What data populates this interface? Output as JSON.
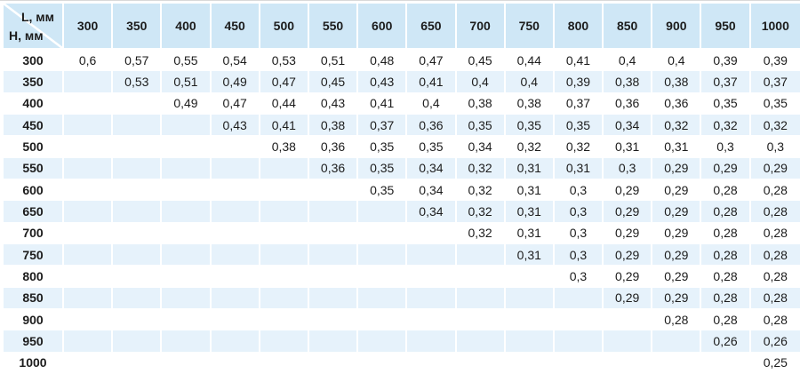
{
  "colors": {
    "header_bg": "#cfe7f6",
    "alt_row_bg": "#e6f2fb",
    "separator": "#ffffff",
    "text": "#1c1c1c",
    "top_border": "#d9d9d9"
  },
  "chart_data": {
    "type": "table",
    "col_axis_label": "L, мм",
    "row_axis_label": "H, мм",
    "columns": [
      "300",
      "350",
      "400",
      "450",
      "500",
      "550",
      "600",
      "650",
      "700",
      "750",
      "800",
      "850",
      "900",
      "950",
      "1000"
    ],
    "row_headers": [
      "300",
      "350",
      "400",
      "450",
      "500",
      "550",
      "600",
      "650",
      "700",
      "750",
      "800",
      "850",
      "900",
      "950",
      "1000"
    ],
    "cells": [
      [
        "0,6",
        "0,57",
        "0,55",
        "0,54",
        "0,53",
        "0,51",
        "0,48",
        "0,47",
        "0,45",
        "0,44",
        "0,41",
        "0,4",
        "0,4",
        "0,39",
        "0,39"
      ],
      [
        "",
        "0,53",
        "0,51",
        "0,49",
        "0,47",
        "0,45",
        "0,43",
        "0,41",
        "0,4",
        "0,4",
        "0,39",
        "0,38",
        "0,38",
        "0,37",
        "0,37"
      ],
      [
        "",
        "",
        "0,49",
        "0,47",
        "0,44",
        "0,43",
        "0,41",
        "0,4",
        "0,38",
        "0,38",
        "0,37",
        "0,36",
        "0,36",
        "0,35",
        "0,35"
      ],
      [
        "",
        "",
        "",
        "0,43",
        "0,41",
        "0,38",
        "0,37",
        "0,36",
        "0,35",
        "0,35",
        "0,35",
        "0,34",
        "0,32",
        "0,32",
        "0,32"
      ],
      [
        "",
        "",
        "",
        "",
        "0,38",
        "0,36",
        "0,35",
        "0,35",
        "0,34",
        "0,32",
        "0,32",
        "0,31",
        "0,31",
        "0,3",
        "0,3"
      ],
      [
        "",
        "",
        "",
        "",
        "",
        "0,36",
        "0,35",
        "0,34",
        "0,32",
        "0,31",
        "0,31",
        "0,3",
        "0,29",
        "0,29",
        "0,29"
      ],
      [
        "",
        "",
        "",
        "",
        "",
        "",
        "0,35",
        "0,34",
        "0,32",
        "0,31",
        "0,3",
        "0,29",
        "0,29",
        "0,28",
        "0,28"
      ],
      [
        "",
        "",
        "",
        "",
        "",
        "",
        "",
        "0,34",
        "0,32",
        "0,31",
        "0,3",
        "0,29",
        "0,29",
        "0,28",
        "0,28"
      ],
      [
        "",
        "",
        "",
        "",
        "",
        "",
        "",
        "",
        "0,32",
        "0,31",
        "0,3",
        "0,29",
        "0,29",
        "0,28",
        "0,28"
      ],
      [
        "",
        "",
        "",
        "",
        "",
        "",
        "",
        "",
        "",
        "0,31",
        "0,3",
        "0,29",
        "0,29",
        "0,28",
        "0,28"
      ],
      [
        "",
        "",
        "",
        "",
        "",
        "",
        "",
        "",
        "",
        "",
        "0,3",
        "0,29",
        "0,29",
        "0,28",
        "0,28"
      ],
      [
        "",
        "",
        "",
        "",
        "",
        "",
        "",
        "",
        "",
        "",
        "",
        "0,29",
        "0,29",
        "0,28",
        "0,28"
      ],
      [
        "",
        "",
        "",
        "",
        "",
        "",
        "",
        "",
        "",
        "",
        "",
        "",
        "0,28",
        "0,28",
        "0,28"
      ],
      [
        "",
        "",
        "",
        "",
        "",
        "",
        "",
        "",
        "",
        "",
        "",
        "",
        "",
        "0,26",
        "0,26"
      ],
      [
        "",
        "",
        "",
        "",
        "",
        "",
        "",
        "",
        "",
        "",
        "",
        "",
        "",
        "",
        "0,25"
      ]
    ]
  }
}
